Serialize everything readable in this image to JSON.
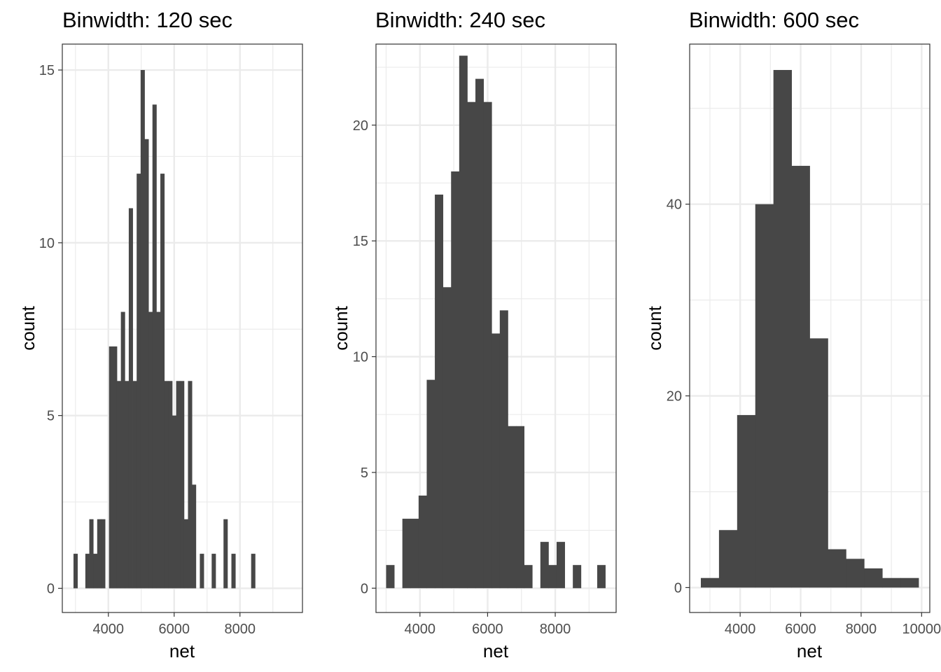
{
  "chart_data": [
    {
      "type": "bar",
      "title": "Binwidth: 120 sec",
      "xlabel": "net",
      "ylabel": "count",
      "binwidth": 120,
      "bin_start": 2940,
      "counts": [
        1,
        0,
        0,
        1,
        2,
        1,
        2,
        2,
        0,
        7,
        7,
        6,
        8,
        6,
        11,
        6,
        12,
        15,
        13,
        8,
        14,
        8,
        12,
        6,
        6,
        5,
        6,
        6,
        2,
        6,
        3,
        0,
        1,
        0,
        0,
        1,
        0,
        0,
        2,
        0,
        1,
        0,
        0,
        0,
        0,
        1
      ],
      "xlim": [
        2600,
        9900
      ],
      "ylim": [
        -0.7,
        15.75
      ],
      "xticks": [
        4000,
        6000,
        8000
      ],
      "xtick_labels": [
        "4000",
        "6000",
        "8000"
      ],
      "yticks": [
        0,
        5,
        10,
        15
      ],
      "ytick_labels": [
        "0",
        "5",
        "10",
        "15"
      ],
      "grid": true
    },
    {
      "type": "bar",
      "title": "Binwidth: 240 sec",
      "xlabel": "net",
      "ylabel": "count",
      "binwidth": 240,
      "bin_start": 3000,
      "counts": [
        1,
        0,
        3,
        3,
        4,
        9,
        17,
        13,
        18,
        23,
        21,
        22,
        21,
        11,
        12,
        7,
        7,
        1,
        0,
        2,
        1,
        2,
        0,
        1,
        0,
        0,
        1
      ],
      "xlim": [
        2700,
        9800
      ],
      "ylim": [
        -1.05,
        23.5
      ],
      "xticks": [
        4000,
        6000,
        8000
      ],
      "xtick_labels": [
        "4000",
        "6000",
        "8000"
      ],
      "yticks": [
        0,
        5,
        10,
        15,
        20
      ],
      "ytick_labels": [
        "0",
        "5",
        "10",
        "15",
        "20"
      ],
      "grid": true
    },
    {
      "type": "bar",
      "title": "Binwidth: 600 sec",
      "xlabel": "net",
      "ylabel": "count",
      "binwidth": 600,
      "bin_start": 2700,
      "counts": [
        1,
        6,
        18,
        40,
        54,
        44,
        26,
        4,
        3,
        2,
        1,
        1
      ],
      "xlim": [
        2330,
        10270
      ],
      "ylim": [
        -2.6,
        56.7
      ],
      "xticks": [
        4000,
        6000,
        8000,
        10000
      ],
      "xtick_labels": [
        "4000",
        "6000",
        "8000",
        "10000"
      ],
      "yticks": [
        0,
        20,
        40
      ],
      "ytick_labels": [
        "0",
        "20",
        "40"
      ],
      "grid": true
    }
  ]
}
